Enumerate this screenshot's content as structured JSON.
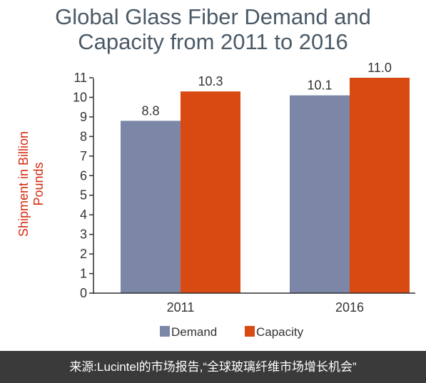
{
  "chart_data": {
    "type": "bar",
    "title_lines": [
      "Global Glass Fiber Demand and",
      "Capacity from 2011 to 2016"
    ],
    "ylabel_lines": [
      "Shipment in Billion",
      "Pounds"
    ],
    "categories": [
      "2011",
      "2016"
    ],
    "series": [
      {
        "name": "Demand",
        "values": [
          8.8,
          10.1
        ],
        "labels": [
          "8.8",
          "10.1"
        ],
        "color": "#7c87a8"
      },
      {
        "name": "Capacity",
        "values": [
          10.3,
          11.0
        ],
        "labels": [
          "10.3",
          "11.0"
        ],
        "color": "#d94a12"
      }
    ],
    "ylim": [
      0,
      11
    ],
    "yticks": [
      0,
      1,
      2,
      3,
      4,
      5,
      6,
      7,
      8,
      9,
      10,
      11
    ],
    "legend_position": "bottom",
    "grid": false
  },
  "footer": {
    "source_text": "来源:Lucintel的市场报告,“全球玻璃纤维市场增长机会”"
  }
}
